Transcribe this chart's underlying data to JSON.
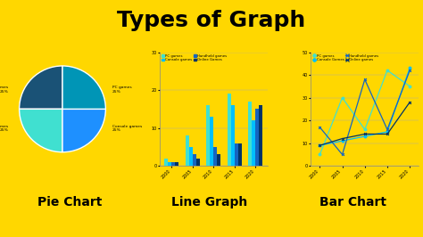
{
  "bg_color": "#FFD700",
  "title": "Types of Graph",
  "title_fontsize": 18,
  "title_color": "#000000",
  "pie_sizes": [
    25,
    25,
    25,
    25
  ],
  "pie_colors": [
    "#1A5276",
    "#40E0D0",
    "#1E90FF",
    "#0095B6"
  ],
  "pie_label": "Pie Chart",
  "years": [
    2000,
    2005,
    2010,
    2015,
    2020
  ],
  "bar_pc": [
    2,
    8,
    16,
    19,
    17
  ],
  "bar_console": [
    1,
    5,
    13,
    16,
    12
  ],
  "bar_handheld": [
    1,
    3,
    5,
    6,
    15
  ],
  "bar_online": [
    1,
    2,
    3,
    6,
    16
  ],
  "bar_colors": [
    "#40E0D0",
    "#00BFFF",
    "#1565C0",
    "#003366"
  ],
  "bar_label": "Line Graph",
  "bar_ylim": [
    0,
    30
  ],
  "bar_yticks": [
    0,
    10,
    20,
    30
  ],
  "line_pc": [
    5,
    30,
    16,
    42,
    35
  ],
  "line_console": [
    9,
    11,
    13,
    15,
    43
  ],
  "line_handheld": [
    17,
    5,
    38,
    16,
    42
  ],
  "line_online": [
    9,
    12,
    14,
    14,
    28
  ],
  "line_colors": [
    "#40E0D0",
    "#00BFFF",
    "#1565C0",
    "#003366"
  ],
  "line_label": "Bar Chart",
  "line_ylim": [
    0,
    50
  ],
  "line_yticks": [
    0,
    10,
    20,
    30,
    40,
    50
  ],
  "legend_labels": [
    "PC games",
    "Console games",
    "Handheld games",
    "Online Games"
  ],
  "legend_labels_line": [
    "PC games",
    "Console Games",
    "Handheld games",
    "Online games"
  ]
}
